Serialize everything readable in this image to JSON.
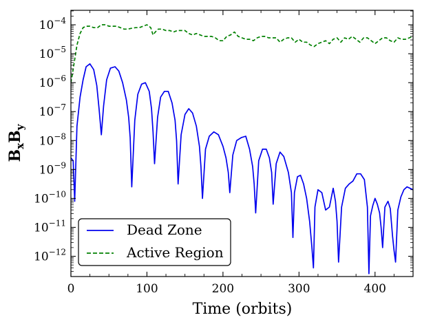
{
  "chart_data": {
    "type": "line",
    "title": "",
    "xlabel": "Time (orbits)",
    "ylabel": "BxBy",
    "ylabel_main": "B",
    "ylabel_sub1": "x",
    "ylabel_sub2": "y",
    "xlim": [
      0,
      450
    ],
    "ylim_log10": [
      -12.7,
      -3.5
    ],
    "y_scale": "log",
    "x_ticks": [
      0,
      100,
      200,
      300,
      400
    ],
    "x_tick_labels": [
      "0",
      "100",
      "200",
      "300",
      "400"
    ],
    "y_ticks_exp": [
      -12,
      -11,
      -10,
      -9,
      -8,
      -7,
      -6,
      -5,
      -4
    ],
    "y_tick_labels": [
      {
        "base": "10",
        "exp": "−12"
      },
      {
        "base": "10",
        "exp": "−11"
      },
      {
        "base": "10",
        "exp": "−10"
      },
      {
        "base": "10",
        "exp": "−9"
      },
      {
        "base": "10",
        "exp": "−8"
      },
      {
        "base": "10",
        "exp": "−7"
      },
      {
        "base": "10",
        "exp": "−6"
      },
      {
        "base": "10",
        "exp": "−5"
      },
      {
        "base": "10",
        "exp": "−4"
      }
    ],
    "legend_position": "lower-left",
    "series": [
      {
        "name": "Dead Zone",
        "color": "#0000ee",
        "style": "solid",
        "x": [
          0,
          3,
          5,
          8,
          12,
          16,
          20,
          25,
          30,
          34,
          37,
          40,
          43,
          47,
          52,
          58,
          63,
          68,
          73,
          76,
          78,
          80,
          84,
          88,
          93,
          98,
          103,
          106,
          108,
          110,
          114,
          118,
          123,
          128,
          133,
          137,
          139,
          141,
          145,
          150,
          155,
          160,
          165,
          169,
          171,
          173,
          177,
          182,
          188,
          194,
          200,
          204,
          207,
          209,
          213,
          218,
          224,
          230,
          235,
          239,
          241,
          243,
          247,
          252,
          257,
          261,
          264,
          266,
          270,
          275,
          280,
          286,
          290,
          292,
          294,
          298,
          302,
          306,
          310,
          314,
          317,
          319,
          321,
          325,
          330,
          335,
          340,
          345,
          348,
          350,
          352,
          356,
          361,
          366,
          371,
          376,
          381,
          386,
          390,
          392,
          394,
          397,
          400,
          403,
          406,
          408,
          410,
          413,
          417,
          420,
          423,
          425,
          427,
          430,
          434,
          438,
          442,
          446,
          450
        ],
        "y_log10": [
          -8.6,
          -8.7,
          -10.1,
          -7.5,
          -6.5,
          -5.9,
          -5.45,
          -5.35,
          -5.55,
          -6.1,
          -6.9,
          -7.8,
          -6.8,
          -5.9,
          -5.5,
          -5.45,
          -5.6,
          -6.0,
          -6.6,
          -7.2,
          -7.9,
          -9.6,
          -7.3,
          -6.4,
          -6.05,
          -6.0,
          -6.3,
          -6.9,
          -7.7,
          -8.8,
          -7.2,
          -6.5,
          -6.3,
          -6.3,
          -6.7,
          -7.3,
          -8.0,
          -9.5,
          -7.8,
          -7.1,
          -6.9,
          -7.05,
          -7.5,
          -8.2,
          -8.9,
          -10.0,
          -8.3,
          -7.85,
          -7.7,
          -7.8,
          -8.2,
          -8.6,
          -9.1,
          -9.8,
          -8.5,
          -8.0,
          -7.9,
          -7.85,
          -8.3,
          -8.9,
          -9.5,
          -10.5,
          -8.7,
          -8.3,
          -8.3,
          -8.6,
          -9.1,
          -10.2,
          -8.8,
          -8.4,
          -8.55,
          -9.1,
          -9.8,
          -11.35,
          -9.8,
          -9.25,
          -9.2,
          -9.5,
          -10.0,
          -10.8,
          -11.7,
          -12.4,
          -10.3,
          -9.7,
          -9.8,
          -10.4,
          -10.3,
          -9.65,
          -10.1,
          -10.8,
          -12.2,
          -10.3,
          -9.65,
          -9.5,
          -9.4,
          -9.15,
          -9.15,
          -9.35,
          -10.3,
          -12.6,
          -10.6,
          -10.25,
          -10.0,
          -10.2,
          -10.5,
          -11.0,
          -11.7,
          -10.3,
          -10.1,
          -10.35,
          -11.3,
          -11.8,
          -12.2,
          -10.4,
          -9.95,
          -9.7,
          -9.6,
          -9.65,
          -9.7
        ]
      },
      {
        "name": "Active Region",
        "color": "#008000",
        "style": "dashed",
        "x": [
          0,
          2,
          5,
          8,
          12,
          16,
          20,
          25,
          30,
          35,
          40,
          45,
          50,
          55,
          60,
          65,
          70,
          75,
          80,
          85,
          90,
          95,
          100,
          105,
          108,
          111,
          115,
          120,
          125,
          130,
          135,
          140,
          145,
          150,
          155,
          160,
          165,
          170,
          175,
          180,
          185,
          190,
          195,
          200,
          205,
          210,
          215,
          220,
          225,
          230,
          235,
          240,
          245,
          250,
          255,
          260,
          265,
          270,
          275,
          280,
          285,
          290,
          295,
          300,
          305,
          310,
          315,
          320,
          325,
          330,
          335,
          340,
          345,
          350,
          355,
          360,
          365,
          370,
          375,
          380,
          385,
          390,
          395,
          400,
          405,
          410,
          415,
          420,
          425,
          430,
          435,
          440,
          445,
          450
        ],
        "y_log10": [
          -6.0,
          -5.7,
          -5.2,
          -4.7,
          -4.3,
          -4.1,
          -4.05,
          -4.05,
          -4.1,
          -4.1,
          -4.0,
          -4.0,
          -4.05,
          -4.05,
          -4.05,
          -4.1,
          -4.15,
          -4.15,
          -4.12,
          -4.1,
          -4.1,
          -4.05,
          -4.0,
          -4.1,
          -4.35,
          -4.25,
          -4.15,
          -4.15,
          -4.2,
          -4.2,
          -4.25,
          -4.2,
          -4.2,
          -4.2,
          -4.3,
          -4.35,
          -4.3,
          -4.35,
          -4.4,
          -4.4,
          -4.4,
          -4.45,
          -4.55,
          -4.55,
          -4.4,
          -4.35,
          -4.25,
          -4.4,
          -4.45,
          -4.5,
          -4.5,
          -4.55,
          -4.45,
          -4.4,
          -4.4,
          -4.45,
          -4.45,
          -4.45,
          -4.6,
          -4.5,
          -4.45,
          -4.45,
          -4.6,
          -4.5,
          -4.6,
          -4.6,
          -4.7,
          -4.75,
          -4.65,
          -4.6,
          -4.55,
          -4.65,
          -4.5,
          -4.45,
          -4.6,
          -4.45,
          -4.5,
          -4.4,
          -4.5,
          -4.6,
          -4.45,
          -4.45,
          -4.55,
          -4.65,
          -4.55,
          -4.45,
          -4.45,
          -4.55,
          -4.6,
          -4.45,
          -4.5,
          -4.5,
          -4.45,
          -4.4
        ]
      }
    ]
  }
}
